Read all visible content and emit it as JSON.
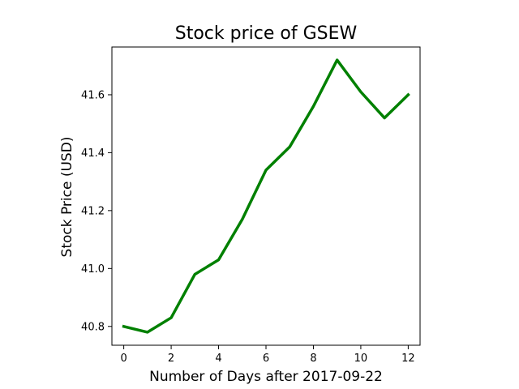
{
  "chart_data": {
    "type": "line",
    "title": "Stock price of GSEW",
    "xlabel": "Number of Days after 2017-09-22",
    "ylabel": "Stock Price (USD)",
    "x": [
      0,
      1,
      2,
      3,
      4,
      5,
      6,
      7,
      8,
      9,
      10,
      11,
      12
    ],
    "series": [
      {
        "values": [
          40.8,
          40.78,
          40.83,
          40.98,
          41.03,
          41.17,
          41.34,
          41.42,
          41.56,
          41.72,
          41.61,
          41.52,
          41.6
        ],
        "color": "#008000"
      }
    ],
    "xlim": [
      -0.5,
      12.5
    ],
    "ylim": [
      40.735,
      41.765
    ],
    "xticks": [
      0,
      2,
      4,
      6,
      8,
      10,
      12
    ],
    "xtick_labels": [
      "0",
      "2",
      "4",
      "6",
      "8",
      "10",
      "12"
    ],
    "yticks": [
      40.8,
      41.0,
      41.2,
      41.4,
      41.6
    ],
    "ytick_labels": [
      "40.8",
      "41.0",
      "41.2",
      "41.4",
      "41.6"
    ],
    "grid": false,
    "legend": "none"
  }
}
